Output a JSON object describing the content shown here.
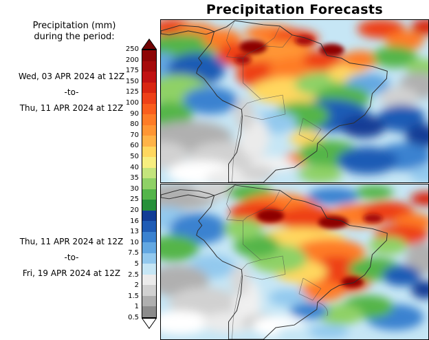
{
  "title": "Precipitation Forecasts",
  "legend": {
    "title_line1": "Precipitation (mm)",
    "title_line2": "during the period:"
  },
  "periods": [
    {
      "start": "Wed, 03 APR 2024 at 12Z",
      "separator": "-to-",
      "end": "Thu, 11 APR 2024 at 12Z"
    },
    {
      "start": "Thu, 11 APR 2024 at 12Z",
      "separator": "-to-",
      "end": "Fri, 19 APR 2024 at 12Z"
    }
  ],
  "colorbar": {
    "tick_labels": [
      "250",
      "200",
      "175",
      "150",
      "125",
      "100",
      "90",
      "80",
      "70",
      "60",
      "50",
      "40",
      "35",
      "30",
      "25",
      "20",
      "16",
      "13",
      "10",
      "7.5",
      "5",
      "2.5",
      "2",
      "1.5",
      "1",
      "0.5"
    ],
    "over_arrow_color": "#720404",
    "under_arrow_color": "#ffffff",
    "segments": [
      {
        "range": "200-250",
        "color": "#8e0606"
      },
      {
        "range": "175-200",
        "color": "#a60b0b"
      },
      {
        "range": "150-175",
        "color": "#c11212"
      },
      {
        "range": "125-150",
        "color": "#d92611"
      },
      {
        "range": "100-125",
        "color": "#ee4118"
      },
      {
        "range": "90-100",
        "color": "#fa5e1d"
      },
      {
        "range": "80-90",
        "color": "#fe7c27"
      },
      {
        "range": "70-80",
        "color": "#ff9634"
      },
      {
        "range": "60-70",
        "color": "#ffb347"
      },
      {
        "range": "50-60",
        "color": "#ffd75e"
      },
      {
        "range": "40-50",
        "color": "#f7ee7f"
      },
      {
        "range": "35-40",
        "color": "#c4e47c"
      },
      {
        "range": "30-35",
        "color": "#8fd166"
      },
      {
        "range": "25-30",
        "color": "#54b54a"
      },
      {
        "range": "20-25",
        "color": "#27903a"
      },
      {
        "range": "16-20",
        "color": "#123d96"
      },
      {
        "range": "13-16",
        "color": "#1f5cb5"
      },
      {
        "range": "10-13",
        "color": "#3a82d0"
      },
      {
        "range": "7.5-10",
        "color": "#63a8e2"
      },
      {
        "range": "5-7.5",
        "color": "#93c9ee"
      },
      {
        "range": "2.5-5",
        "color": "#c6e6f5"
      },
      {
        "range": "2-2.5",
        "color": "#ebebeb"
      },
      {
        "range": "1.5-2",
        "color": "#d1d1d1"
      },
      {
        "range": "1-1.5",
        "color": "#afafaf"
      },
      {
        "range": "0.5-1",
        "color": "#8c8c8c"
      }
    ]
  }
}
